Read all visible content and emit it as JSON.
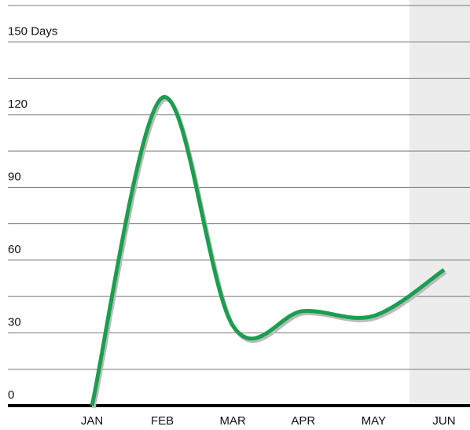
{
  "chart_data": {
    "type": "line",
    "categories": [
      "JAN",
      "FEB",
      "MAR",
      "APR",
      "MAY",
      "JUN"
    ],
    "series": [
      {
        "color": "#1a9e4f",
        "values": [
          0,
          127,
          33,
          39,
          37,
          56
        ]
      }
    ],
    "ylim": [
      0,
      165
    ],
    "yticks": [
      0,
      {
        "value": 15,
        "label": null
      },
      30,
      {
        "value": 45,
        "label": null
      },
      60,
      {
        "value": 75,
        "label": null
      },
      90,
      {
        "value": 105,
        "label": null
      },
      120,
      {
        "value": 135,
        "label": null
      },
      {
        "value": 150,
        "label": "150 Days"
      },
      {
        "value": 165,
        "label": null
      }
    ],
    "grid": true
  }
}
